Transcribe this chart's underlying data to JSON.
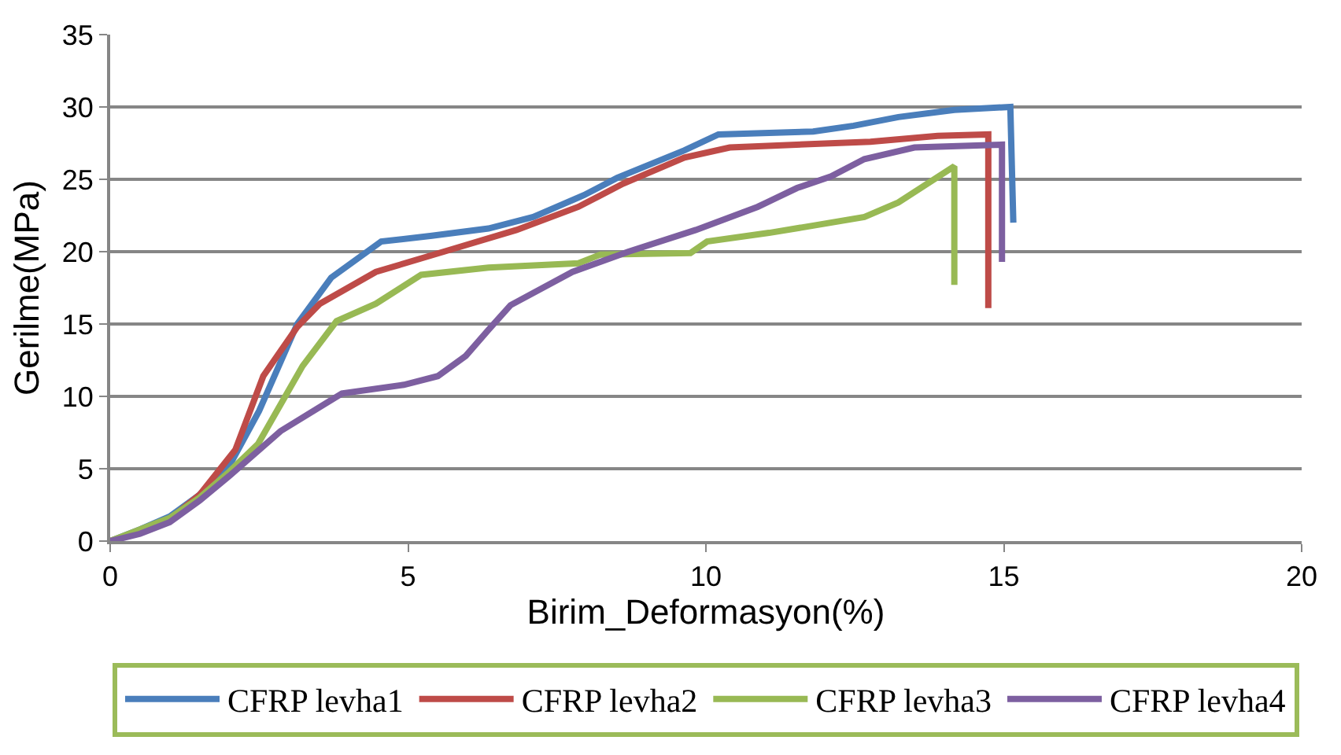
{
  "chart_data": {
    "type": "line",
    "xlabel": "Birim_Deformasyon(%)",
    "ylabel": "Gerilme(MPa)",
    "xlim": [
      0,
      20
    ],
    "xticks": [
      0,
      5,
      10,
      15,
      20
    ],
    "ylim": [
      0,
      35
    ],
    "yticks": [
      0,
      5,
      10,
      15,
      20,
      25,
      30,
      35
    ],
    "grid": "y",
    "legend": "bottom",
    "marker": "none",
    "line_style": "solid",
    "series": [
      {
        "name": "CFRP levha1",
        "color": "#4a7ebb",
        "x": [
          0,
          0.5,
          1,
          1.5,
          2,
          2.5,
          3.14,
          3.71,
          4.55,
          5.4,
          6.35,
          7.1,
          7.95,
          8.51,
          9.64,
          10.21,
          11.8,
          12.48,
          13.23,
          14.17,
          15.11,
          15.16
        ],
        "values": [
          0,
          0.8,
          1.7,
          3.2,
          5.2,
          9.0,
          15.0,
          18.2,
          20.7,
          21.1,
          21.6,
          22.4,
          23.9,
          25.1,
          27.0,
          28.1,
          28.3,
          28.7,
          29.3,
          29.8,
          30.0,
          22.0
        ]
      },
      {
        "name": "CFRP levha2",
        "color": "#be4b48",
        "x": [
          0,
          0.5,
          1,
          1.5,
          2.1,
          2.57,
          3.14,
          3.52,
          4.46,
          5.6,
          6.82,
          7.86,
          8.61,
          9.64,
          10.4,
          12.76,
          13.89,
          14.74,
          14.74
        ],
        "values": [
          0,
          0.7,
          1.5,
          3.2,
          6.3,
          11.4,
          14.8,
          16.4,
          18.6,
          20.0,
          21.5,
          23.1,
          24.7,
          26.5,
          27.2,
          27.6,
          28.0,
          28.1,
          16.1
        ]
      },
      {
        "name": "CFRP levha3",
        "color": "#98b954",
        "x": [
          0,
          0.5,
          1,
          1.5,
          2,
          2.48,
          3.23,
          3.8,
          4.46,
          5.22,
          6.35,
          7.86,
          8.23,
          9.74,
          10.02,
          11.06,
          11.8,
          12.66,
          13.23,
          14.17,
          14.17
        ],
        "values": [
          0,
          0.8,
          1.6,
          3.0,
          4.8,
          6.7,
          12.1,
          15.2,
          16.4,
          18.4,
          18.9,
          19.2,
          19.8,
          19.9,
          20.7,
          21.3,
          21.8,
          22.4,
          23.4,
          25.9,
          17.7
        ]
      },
      {
        "name": "CFRP levha4",
        "color": "#7d5fa0",
        "x": [
          0,
          0.5,
          1,
          1.5,
          2,
          2.86,
          3.89,
          4.93,
          5.5,
          5.97,
          6.35,
          6.72,
          7.76,
          8.7,
          9.83,
          10.87,
          11.53,
          12.1,
          12.66,
          13.5,
          14.97,
          14.97
        ],
        "values": [
          0,
          0.5,
          1.3,
          2.8,
          4.5,
          7.6,
          10.2,
          10.8,
          11.4,
          12.8,
          14.6,
          16.3,
          18.6,
          20.0,
          21.5,
          23.1,
          24.4,
          25.2,
          26.4,
          27.2,
          27.4,
          19.3
        ]
      }
    ]
  }
}
